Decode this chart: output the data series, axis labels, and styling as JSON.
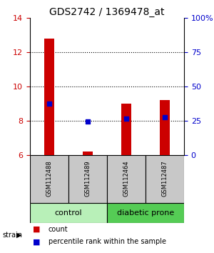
{
  "title": "GDS2742 / 1369478_at",
  "samples": [
    "GSM112488",
    "GSM112489",
    "GSM112464",
    "GSM112487"
  ],
  "bar_bottoms": [
    6.0,
    6.0,
    6.0,
    6.0
  ],
  "bar_tops": [
    12.8,
    6.18,
    9.0,
    9.2
  ],
  "percentile_values": [
    9.0,
    7.95,
    8.1,
    8.2
  ],
  "ylim_left": [
    6,
    14
  ],
  "ylim_right": [
    0,
    100
  ],
  "yticks_left": [
    6,
    8,
    10,
    12,
    14
  ],
  "yticks_right": [
    0,
    25,
    50,
    75,
    100
  ],
  "ytick_labels_right": [
    "0",
    "25",
    "50",
    "75",
    "100%"
  ],
  "hgrid_lines": [
    8,
    10,
    12
  ],
  "bar_color": "#cc0000",
  "dot_color": "#0000cc",
  "background_color": "#ffffff",
  "sample_box_color": "#c8c8c8",
  "control_bg": "#b8f0b8",
  "diabetic_bg": "#55cc55",
  "left_tick_color": "#cc0000",
  "right_tick_color": "#0000cc",
  "bar_width": 0.25,
  "title_fontsize": 10,
  "sample_fontsize": 6,
  "group_fontsize": 8,
  "legend_fontsize": 7
}
